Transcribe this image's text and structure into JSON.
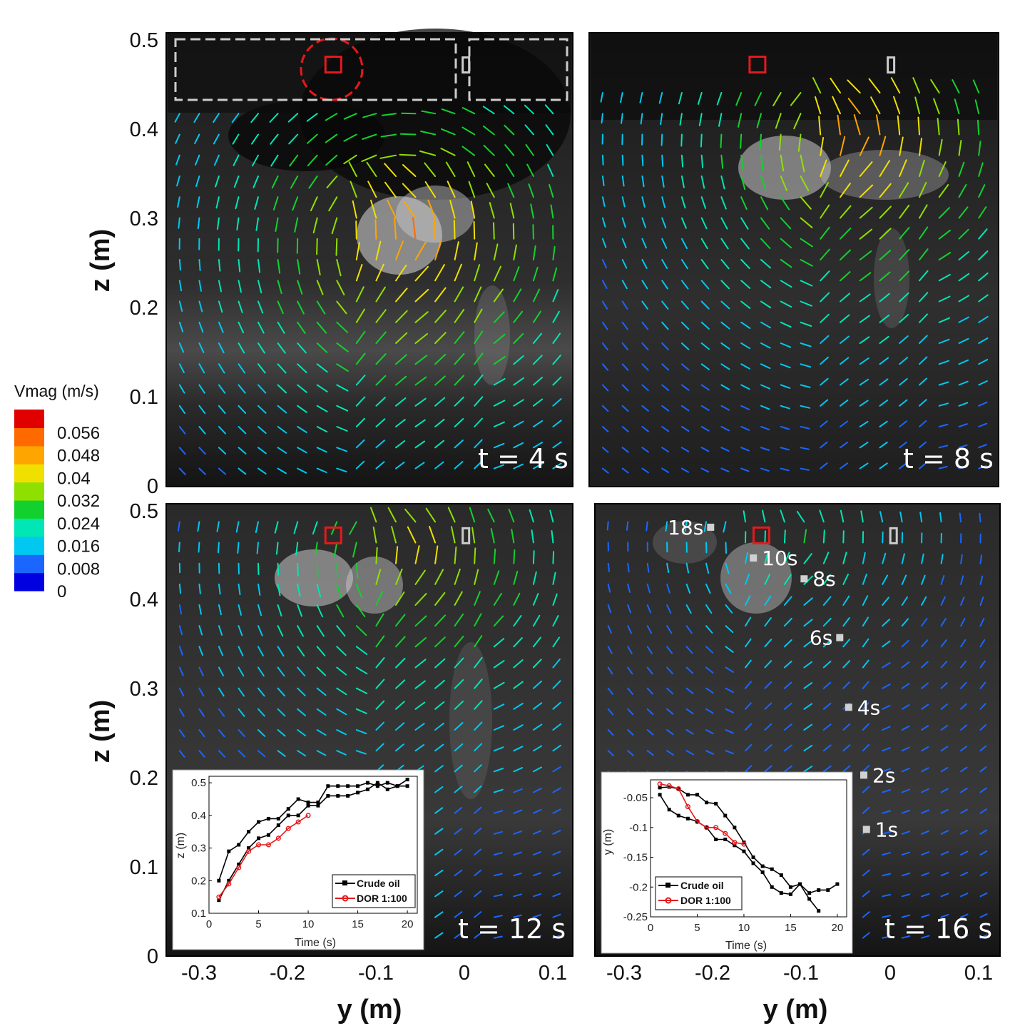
{
  "chart_data": [
    {
      "type": "quiver",
      "panel_label": "t = 4 s",
      "xlabel": "",
      "ylabel": "z (m)",
      "xlim": [
        -0.335,
        0.12
      ],
      "ylim": [
        0,
        0.5
      ],
      "yticks": [
        "0",
        "0.1",
        "0.2",
        "0.3",
        "0.4",
        "0.5"
      ],
      "vortex": {
        "y": -0.06,
        "z": 0.27,
        "peak_speed": 0.062
      },
      "markers": {
        "red_square": {
          "y": -0.148,
          "z": 0.465
        },
        "grey_rect": {
          "y": 0.0,
          "z": 0.465
        }
      },
      "annotations": {
        "dashed_circle": {
          "y": -0.148,
          "z": 0.465
        },
        "dashed_boxes": 2
      }
    },
    {
      "type": "quiver",
      "panel_label": "t = 8 s",
      "xlabel": "",
      "ylabel": "",
      "xlim": [
        -0.335,
        0.12
      ],
      "ylim": [
        0,
        0.5
      ],
      "vortex": {
        "y": -0.03,
        "z": 0.38,
        "peak_speed": 0.06
      },
      "markers": {
        "red_square": {
          "y": -0.148,
          "z": 0.465
        },
        "grey_rect": {
          "y": 0.0,
          "z": 0.465
        }
      }
    },
    {
      "type": "quiver",
      "panel_label": "t = 12 s",
      "xlabel": "y (m)",
      "ylabel": "z (m)",
      "xlim": [
        -0.335,
        0.12
      ],
      "ylim": [
        0,
        0.5
      ],
      "xticks": [
        "-0.3",
        "-0.2",
        "-0.1",
        "0",
        "0.1"
      ],
      "yticks": [
        "0",
        "0.1",
        "0.2",
        "0.3",
        "0.4",
        "0.5"
      ],
      "vortex": {
        "y": -0.05,
        "z": 0.44,
        "peak_speed": 0.05
      },
      "markers": {
        "red_square": {
          "y": -0.148,
          "z": 0.465
        },
        "grey_rect": {
          "y": 0.0,
          "z": 0.465
        }
      },
      "inset": {
        "type": "line",
        "xlabel": "Time (s)",
        "ylabel": "z (m)",
        "xlim": [
          0,
          21
        ],
        "ylim": [
          0.1,
          0.52
        ],
        "xticks": [
          "0",
          "5",
          "10",
          "15",
          "20"
        ],
        "yticks": [
          "0.1",
          "0.2",
          "0.3",
          "0.4",
          "0.5"
        ],
        "legend": [
          "Crude oil",
          "DOR 1:100"
        ],
        "series": [
          {
            "name": "Crude oil",
            "color": "#000000",
            "marker": "square",
            "points": [
              [
                1,
                0.2
              ],
              [
                2,
                0.29
              ],
              [
                3,
                0.31
              ],
              [
                4,
                0.35
              ],
              [
                5,
                0.38
              ],
              [
                6,
                0.39
              ],
              [
                7,
                0.39
              ],
              [
                8,
                0.42
              ],
              [
                9,
                0.45
              ],
              [
                10,
                0.44
              ],
              [
                11,
                0.44
              ],
              [
                12,
                0.49
              ],
              [
                13,
                0.49
              ],
              [
                14,
                0.49
              ],
              [
                15,
                0.49
              ],
              [
                16,
                0.5
              ],
              [
                17,
                0.49
              ],
              [
                18,
                0.5
              ],
              [
                19,
                0.49
              ],
              [
                20,
                0.51
              ]
            ]
          },
          {
            "name": "Crude oil",
            "color": "#000000",
            "marker": "square",
            "points": [
              [
                1,
                0.14
              ],
              [
                2,
                0.2
              ],
              [
                3,
                0.25
              ],
              [
                4,
                0.3
              ],
              [
                5,
                0.33
              ],
              [
                6,
                0.34
              ],
              [
                7,
                0.37
              ],
              [
                8,
                0.4
              ],
              [
                9,
                0.4
              ],
              [
                10,
                0.43
              ],
              [
                11,
                0.43
              ],
              [
                12,
                0.46
              ],
              [
                13,
                0.46
              ],
              [
                14,
                0.46
              ],
              [
                15,
                0.47
              ],
              [
                16,
                0.48
              ],
              [
                17,
                0.5
              ],
              [
                18,
                0.48
              ],
              [
                19,
                0.49
              ],
              [
                20,
                0.49
              ]
            ]
          },
          {
            "name": "DOR 1:100",
            "color": "#e41a1c",
            "marker": "circle",
            "points": [
              [
                1,
                0.15
              ],
              [
                2,
                0.19
              ],
              [
                3,
                0.24
              ],
              [
                4,
                0.29
              ],
              [
                5,
                0.31
              ],
              [
                6,
                0.31
              ],
              [
                7,
                0.33
              ],
              [
                8,
                0.36
              ],
              [
                9,
                0.38
              ],
              [
                10,
                0.4
              ]
            ]
          }
        ]
      }
    },
    {
      "type": "quiver",
      "panel_label": "t = 16 s",
      "xlabel": "y (m)",
      "ylabel": "",
      "xlim": [
        -0.335,
        0.12
      ],
      "ylim": [
        0,
        0.5
      ],
      "xticks": [
        "-0.3",
        "-0.2",
        "-0.1",
        "0",
        "0.1"
      ],
      "vortex": {
        "y": -0.1,
        "z": 0.46,
        "peak_speed": 0.03
      },
      "markers": {
        "red_square": {
          "y": -0.148,
          "z": 0.465
        },
        "grey_rect": {
          "y": 0.0,
          "z": 0.465
        }
      },
      "trajectory": [
        {
          "label": "1s",
          "y": -0.03,
          "z": 0.14
        },
        {
          "label": "2s",
          "y": -0.033,
          "z": 0.2
        },
        {
          "label": "4s",
          "y": -0.05,
          "z": 0.275
        },
        {
          "label": "6s",
          "y": -0.06,
          "z": 0.352
        },
        {
          "label": "8s",
          "y": -0.1,
          "z": 0.417
        },
        {
          "label": "10s",
          "y": -0.157,
          "z": 0.44
        },
        {
          "label": "18s",
          "y": -0.205,
          "z": 0.474
        }
      ],
      "inset": {
        "type": "line",
        "xlabel": "Time (s)",
        "ylabel": "y (m)",
        "xlim": [
          0,
          21
        ],
        "ylim": [
          -0.25,
          -0.02
        ],
        "xticks": [
          "0",
          "5",
          "10",
          "15",
          "20"
        ],
        "yticks": [
          "-0.05",
          "-0.1",
          "-0.15",
          "-0.2",
          "-0.25"
        ],
        "legend": [
          "Crude oil",
          "DOR 1:100"
        ],
        "series": [
          {
            "name": "Crude oil",
            "color": "#000000",
            "marker": "square",
            "points": [
              [
                1,
                -0.033
              ],
              [
                2,
                -0.032
              ],
              [
                3,
                -0.035
              ],
              [
                4,
                -0.045
              ],
              [
                5,
                -0.045
              ],
              [
                6,
                -0.058
              ],
              [
                7,
                -0.06
              ],
              [
                8,
                -0.08
              ],
              [
                9,
                -0.1
              ],
              [
                10,
                -0.125
              ],
              [
                11,
                -0.15
              ],
              [
                12,
                -0.165
              ],
              [
                13,
                -0.17
              ],
              [
                14,
                -0.18
              ],
              [
                15,
                -0.2
              ],
              [
                16,
                -0.195
              ],
              [
                17,
                -0.21
              ],
              [
                18,
                -0.205
              ],
              [
                19,
                -0.205
              ],
              [
                20,
                -0.195
              ]
            ]
          },
          {
            "name": "Crude oil",
            "color": "#000000",
            "marker": "square",
            "points": [
              [
                1,
                -0.045
              ],
              [
                2,
                -0.07
              ],
              [
                3,
                -0.08
              ],
              [
                4,
                -0.085
              ],
              [
                5,
                -0.09
              ],
              [
                6,
                -0.1
              ],
              [
                7,
                -0.12
              ],
              [
                8,
                -0.12
              ],
              [
                9,
                -0.13
              ],
              [
                10,
                -0.14
              ],
              [
                11,
                -0.16
              ],
              [
                12,
                -0.175
              ],
              [
                13,
                -0.2
              ],
              [
                14,
                -0.21
              ],
              [
                15,
                -0.212
              ],
              [
                16,
                -0.195
              ],
              [
                17,
                -0.22
              ],
              [
                18,
                -0.24
              ]
            ]
          },
          {
            "name": "DOR 1:100",
            "color": "#e41a1c",
            "marker": "circle",
            "points": [
              [
                1,
                -0.027
              ],
              [
                2,
                -0.03
              ],
              [
                3,
                -0.035
              ],
              [
                4,
                -0.065
              ],
              [
                5,
                -0.09
              ],
              [
                6,
                -0.1
              ],
              [
                7,
                -0.1
              ],
              [
                8,
                -0.11
              ],
              [
                9,
                -0.125
              ],
              [
                10,
                -0.128
              ]
            ]
          }
        ]
      }
    }
  ],
  "colorbar": {
    "title": "Vmag (m/s)",
    "ticks": [
      "0.056",
      "0.048",
      "0.04",
      "0.032",
      "0.024",
      "0.016",
      "0.008",
      "0"
    ],
    "range": [
      0,
      0.064
    ],
    "colors": [
      "#0000e0",
      "#1a66ff",
      "#00c8f0",
      "#00e6b4",
      "#12d12e",
      "#8fe000",
      "#f0e000",
      "#ffa500",
      "#ff6a00",
      "#e00000"
    ]
  }
}
